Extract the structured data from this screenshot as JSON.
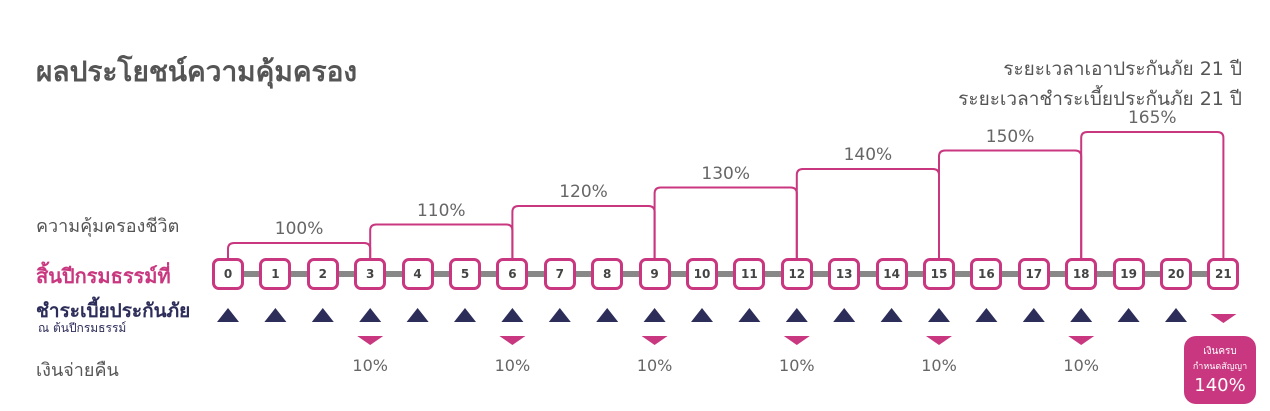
{
  "title": "ผลประโยชน์ความคุ้มครอง",
  "coverage_period": "ระยะเวลาเอาประกันภัย 21 ปี",
  "payment_period": "ระยะเวลาชำระเบี้ยประกันภัย 21 ปี",
  "labels": {
    "life_cover": "ความคุ้มครองชีวิต",
    "policy_year_end": "สิ้นปีกรมธรรม์ที่",
    "premium_payment": "ชำระเบี้ยประกันภัย",
    "premium_payment_sub": "ณ ต้นปีกรมธรรม์",
    "cash_back": "เงินจ่ายคืน"
  },
  "years": [
    "0",
    "1",
    "2",
    "3",
    "4",
    "5",
    "6",
    "7",
    "8",
    "9",
    "10",
    "11",
    "12",
    "13",
    "14",
    "15",
    "16",
    "17",
    "18",
    "19",
    "20",
    "21"
  ],
  "coverage_steps": [
    {
      "from": 0,
      "to": 3,
      "label": "100%"
    },
    {
      "from": 3,
      "to": 6,
      "label": "110%"
    },
    {
      "from": 6,
      "to": 9,
      "label": "120%"
    },
    {
      "from": 9,
      "to": 12,
      "label": "130%"
    },
    {
      "from": 12,
      "to": 15,
      "label": "140%"
    },
    {
      "from": 15,
      "to": 18,
      "label": "150%"
    },
    {
      "from": 18,
      "to": 21,
      "label": "165%"
    }
  ],
  "premium_years": [
    0,
    1,
    2,
    3,
    4,
    5,
    6,
    7,
    8,
    9,
    10,
    11,
    12,
    13,
    14,
    15,
    16,
    17,
    18,
    19,
    20
  ],
  "cash_back": [
    {
      "year": 3,
      "label": "10%"
    },
    {
      "year": 6,
      "label": "10%"
    },
    {
      "year": 9,
      "label": "10%"
    },
    {
      "year": 12,
      "label": "10%"
    },
    {
      "year": 15,
      "label": "10%"
    },
    {
      "year": 18,
      "label": "10%"
    }
  ],
  "maturity": {
    "year": 21,
    "line1": "เงินครบ",
    "line2": "กำหนดสัญญา",
    "value": "140%"
  },
  "colors": {
    "pink": "#c8377f",
    "navy": "#2d2d5a",
    "gray": "#888888"
  }
}
